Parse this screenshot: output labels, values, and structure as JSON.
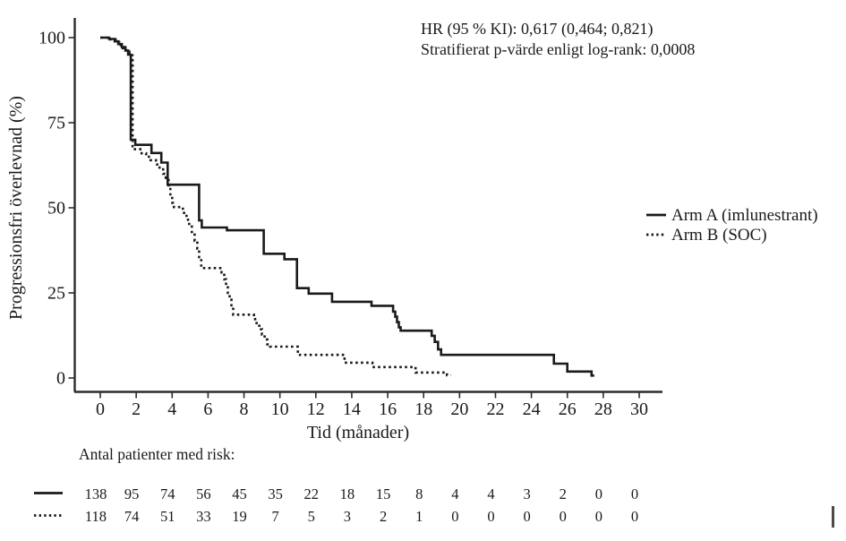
{
  "figure": {
    "background": "#ffffff",
    "ink_color": "#1a1a1a"
  },
  "chart_data": {
    "type": "line",
    "subtype": "kaplan_meier_step",
    "title": "",
    "xlabel": "Tid (månader)",
    "ylabel": "Progressionsfri överlevnad (%)",
    "xlim": [
      0,
      30
    ],
    "ylim": [
      0,
      100
    ],
    "x_ticks": [
      0,
      2,
      4,
      6,
      8,
      10,
      12,
      14,
      16,
      18,
      20,
      22,
      24,
      26,
      28,
      30
    ],
    "y_ticks": [
      0,
      25,
      50,
      75,
      100
    ],
    "grid": false,
    "legend_position": "right-middle",
    "annotation_lines": [
      "HR (95 % KI): 0,617 (0,464; 0,821)",
      "Stratifierat p-värde enligt log-rank: 0,0008"
    ],
    "series": [
      {
        "name": "Arm A (imlunestrant)",
        "line_style": "solid",
        "color": "#1a1a1a",
        "end_time": 27.5,
        "steps": [
          [
            0,
            100
          ],
          [
            0.5,
            99.6
          ],
          [
            0.8,
            98.9
          ],
          [
            1.0,
            98.1
          ],
          [
            1.2,
            97.2
          ],
          [
            1.4,
            96.2
          ],
          [
            1.55,
            95.0
          ],
          [
            1.7,
            70.0
          ],
          [
            1.95,
            68.5
          ],
          [
            2.85,
            66.1
          ],
          [
            3.4,
            63.3
          ],
          [
            3.75,
            56.8
          ],
          [
            5.5,
            46.3
          ],
          [
            5.65,
            44.2
          ],
          [
            7.05,
            43.4
          ],
          [
            9.1,
            36.5
          ],
          [
            10.25,
            34.9
          ],
          [
            10.95,
            26.4
          ],
          [
            11.6,
            24.8
          ],
          [
            12.9,
            22.4
          ],
          [
            15.1,
            21.2
          ],
          [
            16.3,
            19.5
          ],
          [
            16.42,
            18.0
          ],
          [
            16.52,
            16.4
          ],
          [
            16.62,
            14.9
          ],
          [
            16.72,
            13.9
          ],
          [
            18.45,
            12.4
          ],
          [
            18.62,
            10.6
          ],
          [
            18.8,
            8.4
          ],
          [
            18.97,
            6.8
          ],
          [
            25.25,
            4.2
          ],
          [
            26.0,
            1.9
          ],
          [
            27.35,
            0.7
          ]
        ]
      },
      {
        "name": "Arm B (SOC)",
        "line_style": "dotted",
        "color": "#1a1a1a",
        "end_time": 19.5,
        "steps": [
          [
            0,
            100
          ],
          [
            0.55,
            99.5
          ],
          [
            0.85,
            98.7
          ],
          [
            1.05,
            97.8
          ],
          [
            1.25,
            96.9
          ],
          [
            1.45,
            95.9
          ],
          [
            1.62,
            94.8
          ],
          [
            1.8,
            67.2
          ],
          [
            2.3,
            66.0
          ],
          [
            2.55,
            65.0
          ],
          [
            2.8,
            64.0
          ],
          [
            3.1,
            62.7
          ],
          [
            3.3,
            61.3
          ],
          [
            3.5,
            60.0
          ],
          [
            3.65,
            58.8
          ],
          [
            3.8,
            56.0
          ],
          [
            3.9,
            53.5
          ],
          [
            4.0,
            51.5
          ],
          [
            4.1,
            50.2
          ],
          [
            4.6,
            48.5
          ],
          [
            4.8,
            46.5
          ],
          [
            4.95,
            44.5
          ],
          [
            5.1,
            42.5
          ],
          [
            5.25,
            40.3
          ],
          [
            5.4,
            38.0
          ],
          [
            5.5,
            35.5
          ],
          [
            5.62,
            32.3
          ],
          [
            6.75,
            31.0
          ],
          [
            6.9,
            29.0
          ],
          [
            7.0,
            27.0
          ],
          [
            7.1,
            25.0
          ],
          [
            7.2,
            23.0
          ],
          [
            7.3,
            21.0
          ],
          [
            7.4,
            18.6
          ],
          [
            8.55,
            17.3
          ],
          [
            8.7,
            15.8
          ],
          [
            8.85,
            14.3
          ],
          [
            9.0,
            12.8
          ],
          [
            9.15,
            11.3
          ],
          [
            9.3,
            9.9
          ],
          [
            9.45,
            9.2
          ],
          [
            11.0,
            6.8
          ],
          [
            13.6,
            4.5
          ],
          [
            15.15,
            3.2
          ],
          [
            17.55,
            1.6
          ],
          [
            19.3,
            0.8
          ]
        ]
      }
    ],
    "risk_table": {
      "label": "Antal patienter med risk:",
      "times": [
        0,
        2,
        4,
        6,
        8,
        10,
        12,
        14,
        16,
        18,
        20,
        22,
        24,
        26,
        28,
        30
      ],
      "rows": [
        {
          "series": "Arm A (imlunestrant)",
          "line_style": "solid",
          "counts": [
            138,
            95,
            74,
            56,
            45,
            35,
            22,
            18,
            15,
            8,
            4,
            4,
            3,
            2,
            0,
            0
          ]
        },
        {
          "series": "Arm B (SOC)",
          "line_style": "dotted",
          "counts": [
            118,
            74,
            51,
            33,
            19,
            7,
            5,
            3,
            2,
            1,
            0,
            0,
            0,
            0,
            0,
            0
          ]
        }
      ]
    }
  }
}
